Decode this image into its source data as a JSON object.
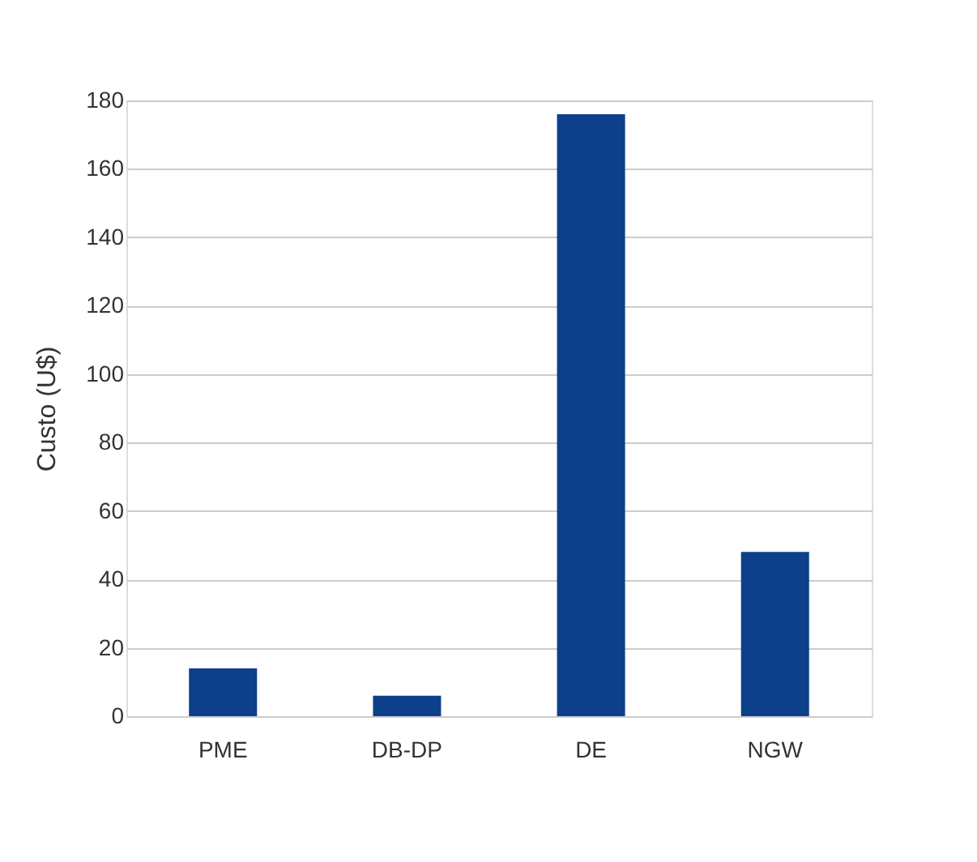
{
  "chart_data": {
    "type": "bar",
    "ylabel": "Custo (U$)",
    "categories": [
      "PME",
      "DB-DP",
      "DE",
      "NGW"
    ],
    "values": [
      14,
      6,
      176,
      48
    ],
    "color": "#0d3f8a",
    "ylim": [
      0,
      180
    ],
    "yticks": [
      0,
      20,
      40,
      60,
      80,
      100,
      120,
      140,
      160,
      180
    ],
    "grid": "y"
  }
}
